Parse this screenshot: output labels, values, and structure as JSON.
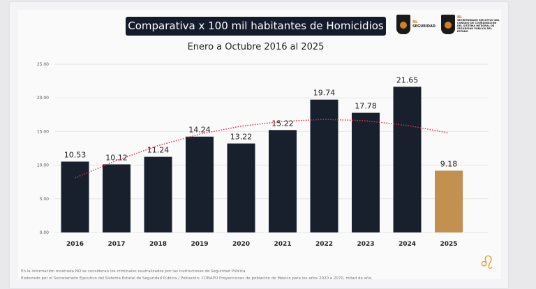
{
  "header": {
    "title": "Comparativa x 100 mil habitantes de Homicidios",
    "subtitle": "Enero a Octubre 2016 al 2025"
  },
  "logos": [
    {
      "brand": "NL",
      "label": "SEGURIDAD"
    },
    {
      "brand": "NL",
      "label": "SECRETARIADO EJECUTIVO DEL CONSEJO DE COORDINACIÓN DEL SISTEMA INTEGRAL DE SEGURIDAD PÚBLICA DEL ESTADO"
    }
  ],
  "footer": {
    "note": "En la información mostrada NO se consideran los criminales neutralizados por las Instituciones de Seguridad Pública.",
    "source": "Elaborado por el Secretariado Ejecutivo del Sistema Estatal de Seguridad Pública / Población: CONAPO Proyecciones de población de México para los años 2020 a 2070, mitad de año."
  },
  "colors": {
    "bar": "#18202e",
    "highlight": "#c39050",
    "trend": "#d9304a"
  },
  "chart_data": {
    "type": "bar",
    "categories": [
      "2016",
      "2017",
      "2018",
      "2019",
      "2020",
      "2021",
      "2022",
      "2023",
      "2024",
      "2025"
    ],
    "values": [
      10.53,
      10.12,
      11.24,
      14.24,
      13.22,
      15.22,
      19.74,
      17.78,
      21.65,
      9.18
    ],
    "data_labels": [
      "10.53",
      "10.12",
      "11.24",
      "14.24",
      "13.22",
      "15.22",
      "19.74",
      "17.78",
      "21.65",
      "9.18"
    ],
    "highlighted_category": "2025",
    "ylim": [
      0,
      25
    ],
    "yticks": [
      "0.00",
      "5.00",
      "10.00",
      "15.00",
      "20.00",
      "25.00"
    ],
    "grid": true,
    "trendline": {
      "type": "polynomial",
      "style": "dotted",
      "values": [
        8.1,
        10.7,
        12.9,
        14.6,
        15.8,
        16.5,
        16.8,
        16.6,
        15.9,
        14.8
      ]
    }
  }
}
